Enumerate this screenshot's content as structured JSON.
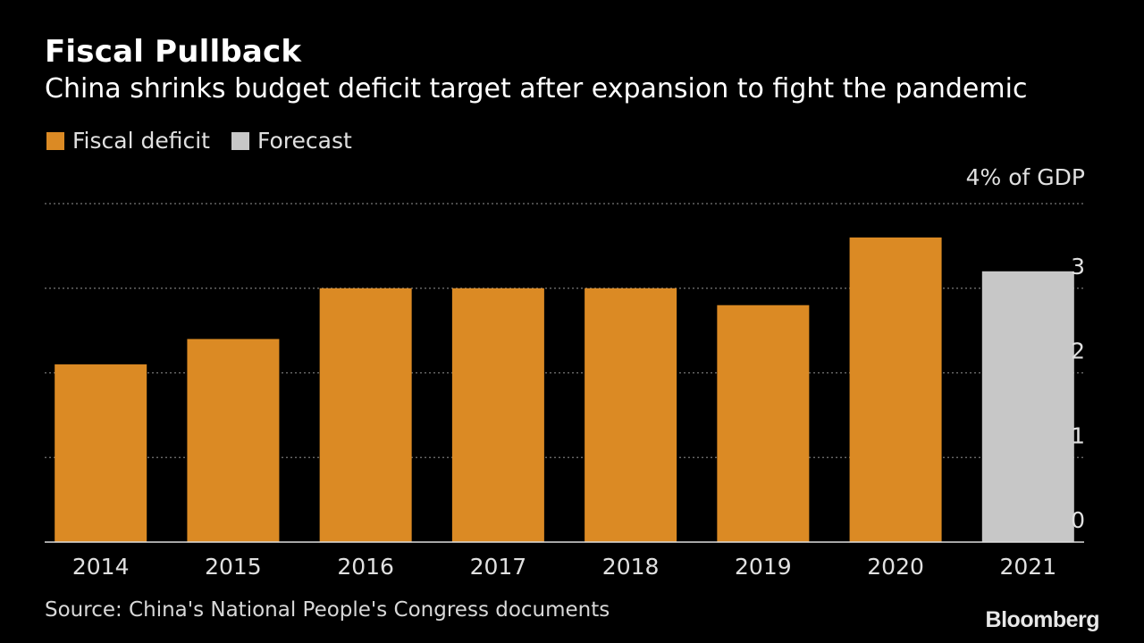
{
  "title": "Fiscal Pullback",
  "subtitle": "China shrinks budget deficit target after expansion to fight the pandemic",
  "legend": [
    {
      "label": "Fiscal deficit",
      "color": "#db8a24"
    },
    {
      "label": "Forecast",
      "color": "#c7c7c7"
    }
  ],
  "unit_label": "4% of GDP",
  "source": "Source: China's National People's Congress documents",
  "logo": "Bloomberg",
  "colors": {
    "background": "#000000",
    "fiscal_deficit": "#db8a24",
    "forecast": "#c7c7c7",
    "gridline": "#777777",
    "text": "#e0e0e0"
  },
  "chart_data": {
    "type": "bar",
    "title": "Fiscal Pullback",
    "subtitle": "China shrinks budget deficit target after expansion to fight the pandemic",
    "xlabel": "",
    "ylabel": "% of GDP",
    "categories": [
      "2014",
      "2015",
      "2016",
      "2017",
      "2018",
      "2019",
      "2020",
      "2021"
    ],
    "series": [
      {
        "name": "Fiscal deficit",
        "values": [
          2.1,
          2.4,
          3.0,
          3.0,
          3.0,
          2.8,
          3.6,
          null
        ]
      },
      {
        "name": "Forecast",
        "values": [
          null,
          null,
          null,
          null,
          null,
          null,
          null,
          3.2
        ]
      }
    ],
    "ylim": [
      0,
      4
    ],
    "yticks": [
      0,
      1,
      2,
      3,
      4
    ],
    "ytick_labels": [
      "0",
      "1",
      "2",
      "3",
      "4% of GDP"
    ],
    "grid": true,
    "legend_position": "top-left"
  }
}
